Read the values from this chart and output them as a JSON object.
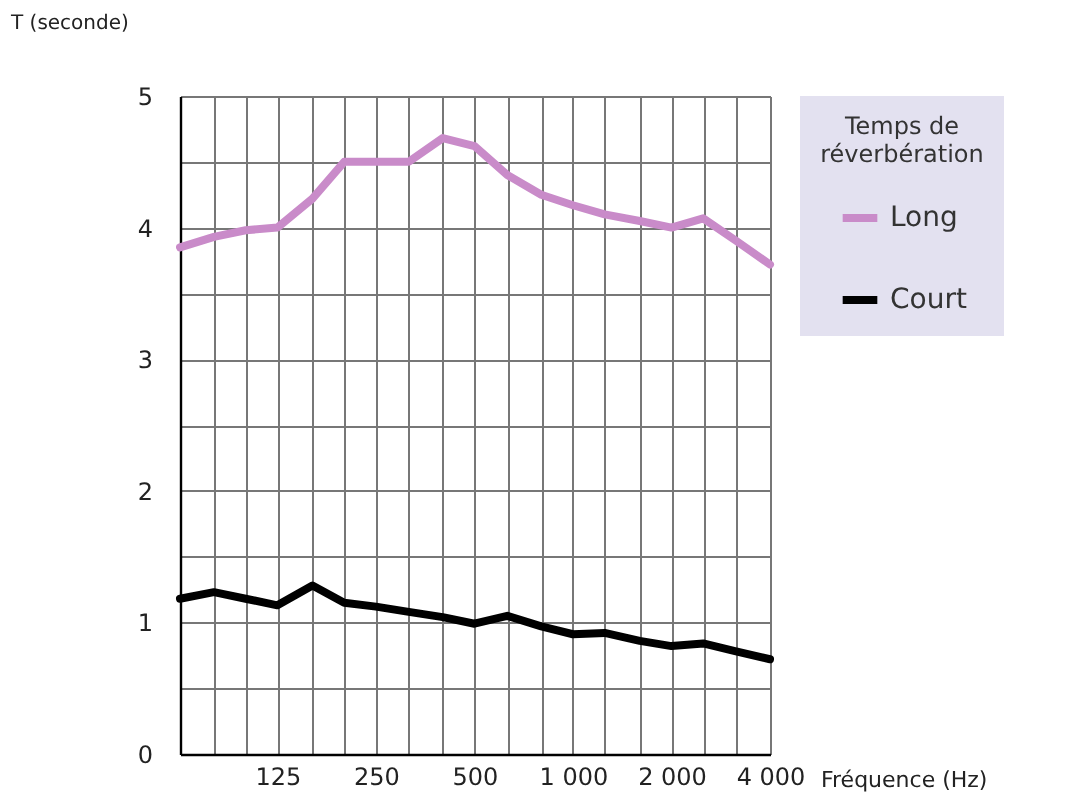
{
  "chart_data": {
    "type": "line",
    "xlabel": "Fréquence (Hz)",
    "ylabel": "T (seconde)",
    "legend_title": "Temps de réverbération",
    "legend": "right",
    "log": "x",
    "grid": true,
    "marker": "none",
    "line_style": "solid",
    "x": [
      63,
      80,
      100,
      125,
      160,
      200,
      250,
      315,
      400,
      500,
      630,
      800,
      1000,
      1250,
      1600,
      2000,
      2500,
      3150,
      4000
    ],
    "series": [
      {
        "name": "Long",
        "color": "#c98bc9",
        "values": [
          3.85,
          3.93,
          3.98,
          4.0,
          4.22,
          4.5,
          4.5,
          4.5,
          4.68,
          4.62,
          4.4,
          4.25,
          4.17,
          4.1,
          4.05,
          4.0,
          4.07,
          3.9,
          3.72
        ]
      },
      {
        "name": "Court",
        "color": "#000000",
        "values": [
          1.18,
          1.23,
          1.18,
          1.13,
          1.28,
          1.15,
          1.12,
          1.08,
          1.04,
          0.99,
          1.05,
          0.97,
          0.91,
          0.92,
          0.86,
          0.82,
          0.84,
          0.78,
          0.72
        ]
      }
    ],
    "xlim": [
      63,
      4000
    ],
    "xticks": [
      {
        "value": 63,
        "label": null
      },
      {
        "value": 80,
        "label": null
      },
      {
        "value": 100,
        "label": null
      },
      {
        "value": 125,
        "label": "125"
      },
      {
        "value": 160,
        "label": null
      },
      {
        "value": 200,
        "label": null
      },
      {
        "value": 250,
        "label": "250"
      },
      {
        "value": 315,
        "label": null
      },
      {
        "value": 400,
        "label": null
      },
      {
        "value": 500,
        "label": "500"
      },
      {
        "value": 630,
        "label": null
      },
      {
        "value": 800,
        "label": null
      },
      {
        "value": 1000,
        "label": "1 000"
      },
      {
        "value": 1250,
        "label": null
      },
      {
        "value": 1600,
        "label": null
      },
      {
        "value": 2000,
        "label": "2 000"
      },
      {
        "value": 2500,
        "label": null
      },
      {
        "value": 3150,
        "label": null
      },
      {
        "value": 4000,
        "label": "4 000"
      }
    ],
    "ylim": [
      0,
      5
    ],
    "yticks": [
      0,
      {
        "value": 0.5,
        "label": null
      },
      1,
      {
        "value": 1.5,
        "label": null
      },
      2,
      {
        "value": 2.5,
        "label": null
      },
      3,
      {
        "value": 3.5,
        "label": null
      },
      4,
      {
        "value": 4.5,
        "label": null
      },
      5
    ]
  }
}
